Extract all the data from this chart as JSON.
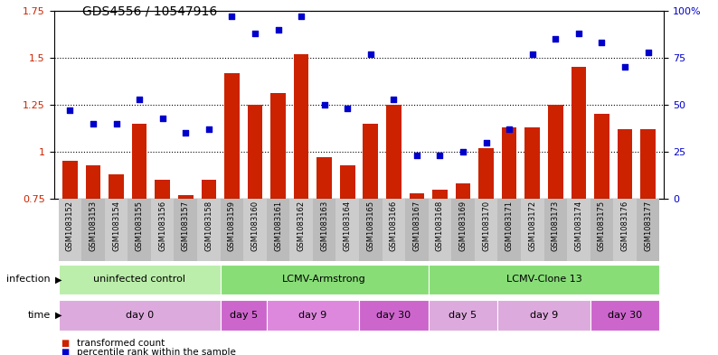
{
  "title": "GDS4556 / 10547916",
  "samples": [
    "GSM1083152",
    "GSM1083153",
    "GSM1083154",
    "GSM1083155",
    "GSM1083156",
    "GSM1083157",
    "GSM1083158",
    "GSM1083159",
    "GSM1083160",
    "GSM1083161",
    "GSM1083162",
    "GSM1083163",
    "GSM1083164",
    "GSM1083165",
    "GSM1083166",
    "GSM1083167",
    "GSM1083168",
    "GSM1083169",
    "GSM1083170",
    "GSM1083171",
    "GSM1083172",
    "GSM1083173",
    "GSM1083174",
    "GSM1083175",
    "GSM1083176",
    "GSM1083177"
  ],
  "bar_values": [
    0.95,
    0.93,
    0.88,
    1.15,
    0.85,
    0.77,
    0.85,
    1.42,
    1.25,
    1.31,
    1.52,
    0.97,
    0.93,
    1.15,
    1.25,
    0.78,
    0.8,
    0.83,
    1.02,
    1.13,
    1.13,
    1.25,
    1.45,
    1.2,
    1.12,
    1.12
  ],
  "scatter_values": [
    47,
    40,
    40,
    53,
    43,
    35,
    37,
    97,
    88,
    90,
    97,
    50,
    48,
    77,
    53,
    23,
    23,
    25,
    30,
    37,
    77,
    85,
    88,
    83,
    70,
    78
  ],
  "bar_color": "#cc2200",
  "scatter_color": "#0000cc",
  "ylim_left": [
    0.75,
    1.75
  ],
  "ylim_right": [
    0,
    100
  ],
  "yticks_left": [
    0.75,
    1.0,
    1.25,
    1.5,
    1.75
  ],
  "ytick_labels_left": [
    "0.75",
    "1",
    "1.25",
    "1.5",
    "1.75"
  ],
  "yticks_right": [
    0,
    25,
    50,
    75,
    100
  ],
  "ytick_labels_right": [
    "0",
    "25",
    "50",
    "75",
    "100%"
  ],
  "grid_values": [
    1.0,
    1.25,
    1.5
  ],
  "infection_groups": [
    {
      "label": "uninfected control",
      "start": 0,
      "end": 7,
      "color": "#bbeeaa"
    },
    {
      "label": "LCMV-Armstrong",
      "start": 7,
      "end": 16,
      "color": "#88dd77"
    },
    {
      "label": "LCMV-Clone 13",
      "start": 16,
      "end": 26,
      "color": "#88dd77"
    }
  ],
  "time_groups": [
    {
      "label": "day 0",
      "start": 0,
      "end": 7,
      "color": "#ddaadd"
    },
    {
      "label": "day 5",
      "start": 7,
      "end": 9,
      "color": "#cc66cc"
    },
    {
      "label": "day 9",
      "start": 9,
      "end": 13,
      "color": "#dd88dd"
    },
    {
      "label": "day 30",
      "start": 13,
      "end": 16,
      "color": "#cc66cc"
    },
    {
      "label": "day 5",
      "start": 16,
      "end": 19,
      "color": "#ddaadd"
    },
    {
      "label": "day 9",
      "start": 19,
      "end": 23,
      "color": "#ddaadd"
    },
    {
      "label": "day 30",
      "start": 23,
      "end": 26,
      "color": "#cc66cc"
    }
  ],
  "legend_bar_label": "transformed count",
  "legend_scatter_label": "percentile rank within the sample",
  "infection_label": "infection",
  "time_label": "time",
  "xtick_colors": [
    "#cccccc",
    "#bbbbbb"
  ]
}
